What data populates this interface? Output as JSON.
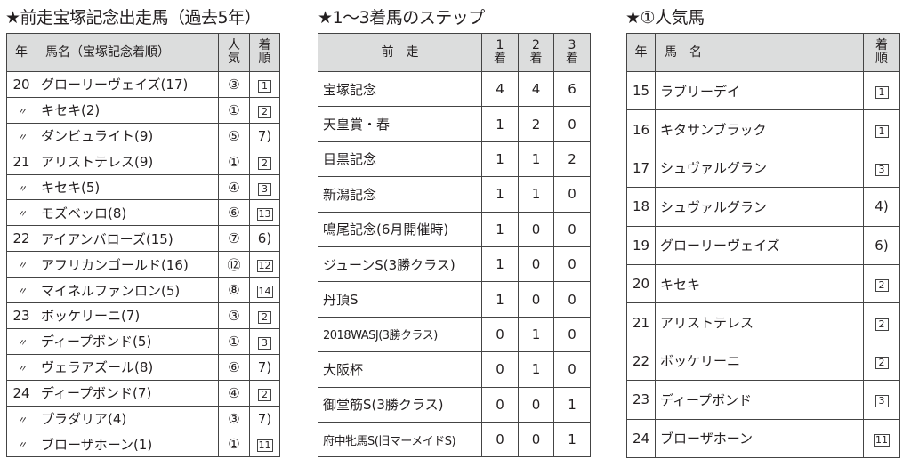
{
  "table1": {
    "title": "★前走宝塚記念出走馬（過去5年）",
    "headers": {
      "year": "年",
      "name": "馬名（宝塚記念着順）",
      "popularity": "人\n気",
      "finish": "着\n順"
    },
    "ditto_mark": "〃",
    "rows": [
      {
        "year": "20",
        "name": "グローリーヴェイズ(17)",
        "popularity": "③",
        "finish": "1",
        "boxed": true
      },
      {
        "year": "〃",
        "name": "キセキ(2)",
        "popularity": "①",
        "finish": "2",
        "boxed": true
      },
      {
        "year": "〃",
        "name": "ダンビュライト(9)",
        "popularity": "⑤",
        "finish": "7)",
        "boxed": false
      },
      {
        "year": "21",
        "name": "アリストテレス(9)",
        "popularity": "①",
        "finish": "2",
        "boxed": true
      },
      {
        "year": "〃",
        "name": "キセキ(5)",
        "popularity": "④",
        "finish": "3",
        "boxed": true
      },
      {
        "year": "〃",
        "name": "モズベッロ(8)",
        "popularity": "⑥",
        "finish": "13",
        "boxed": true
      },
      {
        "year": "22",
        "name": "アイアンバローズ(15)",
        "popularity": "⑦",
        "finish": "6)",
        "boxed": false
      },
      {
        "year": "〃",
        "name": "アフリカンゴールド(16)",
        "popularity": "⑫",
        "finish": "12",
        "boxed": true
      },
      {
        "year": "〃",
        "name": "マイネルファンロン(5)",
        "popularity": "⑧",
        "finish": "14",
        "boxed": true
      },
      {
        "year": "23",
        "name": "ボッケリーニ(7)",
        "popularity": "③",
        "finish": "2",
        "boxed": true
      },
      {
        "year": "〃",
        "name": "ディープボンド(5)",
        "popularity": "①",
        "finish": "3",
        "boxed": true
      },
      {
        "year": "〃",
        "name": "ヴェラアズール(8)",
        "popularity": "⑥",
        "finish": "7)",
        "boxed": false
      },
      {
        "year": "24",
        "name": "ディープボンド(7)",
        "popularity": "④",
        "finish": "2",
        "boxed": true
      },
      {
        "year": "〃",
        "name": "プラダリア(4)",
        "popularity": "③",
        "finish": "7)",
        "boxed": false
      },
      {
        "year": "〃",
        "name": "ブローザホーン(1)",
        "popularity": "①",
        "finish": "11",
        "boxed": true
      }
    ]
  },
  "table2": {
    "title": "★1〜3着馬のステップ",
    "headers": {
      "race": "前　走",
      "first": "1\n着",
      "second": "2\n着",
      "third": "3\n着"
    },
    "rows": [
      {
        "race": "宝塚記念",
        "first": "4",
        "second": "4",
        "third": "6"
      },
      {
        "race": "天皇賞・春",
        "first": "1",
        "second": "2",
        "third": "0"
      },
      {
        "race": "目黒記念",
        "first": "1",
        "second": "1",
        "third": "2"
      },
      {
        "race": "新潟記念",
        "first": "1",
        "second": "1",
        "third": "0"
      },
      {
        "race": "鳴尾記念(6月開催時)",
        "first": "1",
        "second": "0",
        "third": "0"
      },
      {
        "race": "ジューンS(3勝クラス)",
        "first": "1",
        "second": "0",
        "third": "0"
      },
      {
        "race": "丹頂S",
        "first": "1",
        "second": "0",
        "third": "0"
      },
      {
        "race": "2018WASJ(3勝クラス)",
        "first": "0",
        "second": "1",
        "third": "0"
      },
      {
        "race": "大阪杯",
        "first": "0",
        "second": "1",
        "third": "0"
      },
      {
        "race": "御堂筋S(3勝クラス)",
        "first": "0",
        "second": "0",
        "third": "1"
      },
      {
        "race": "府中牝馬S(旧マーメイドS)",
        "first": "0",
        "second": "0",
        "third": "1"
      }
    ]
  },
  "table3": {
    "title": "★①人気馬",
    "headers": {
      "year": "年",
      "name": "馬　名",
      "finish": "着\n順"
    },
    "rows": [
      {
        "year": "15",
        "name": "ラブリーデイ",
        "finish": "1",
        "boxed": true
      },
      {
        "year": "16",
        "name": "キタサンブラック",
        "finish": "1",
        "boxed": true
      },
      {
        "year": "17",
        "name": "シュヴァルグラン",
        "finish": "3",
        "boxed": true
      },
      {
        "year": "18",
        "name": "シュヴァルグラン",
        "finish": "4)",
        "boxed": false
      },
      {
        "year": "19",
        "name": "グローリーヴェイズ",
        "finish": "6)",
        "boxed": false
      },
      {
        "year": "20",
        "name": "キセキ",
        "finish": "2",
        "boxed": true
      },
      {
        "year": "21",
        "name": "アリストテレス",
        "finish": "2",
        "boxed": true
      },
      {
        "year": "22",
        "name": "ボッケリーニ",
        "finish": "2",
        "boxed": true
      },
      {
        "year": "23",
        "name": "ディープボンド",
        "finish": "3",
        "boxed": true
      },
      {
        "year": "24",
        "name": "ブローザホーン",
        "finish": "11",
        "boxed": true
      }
    ]
  }
}
